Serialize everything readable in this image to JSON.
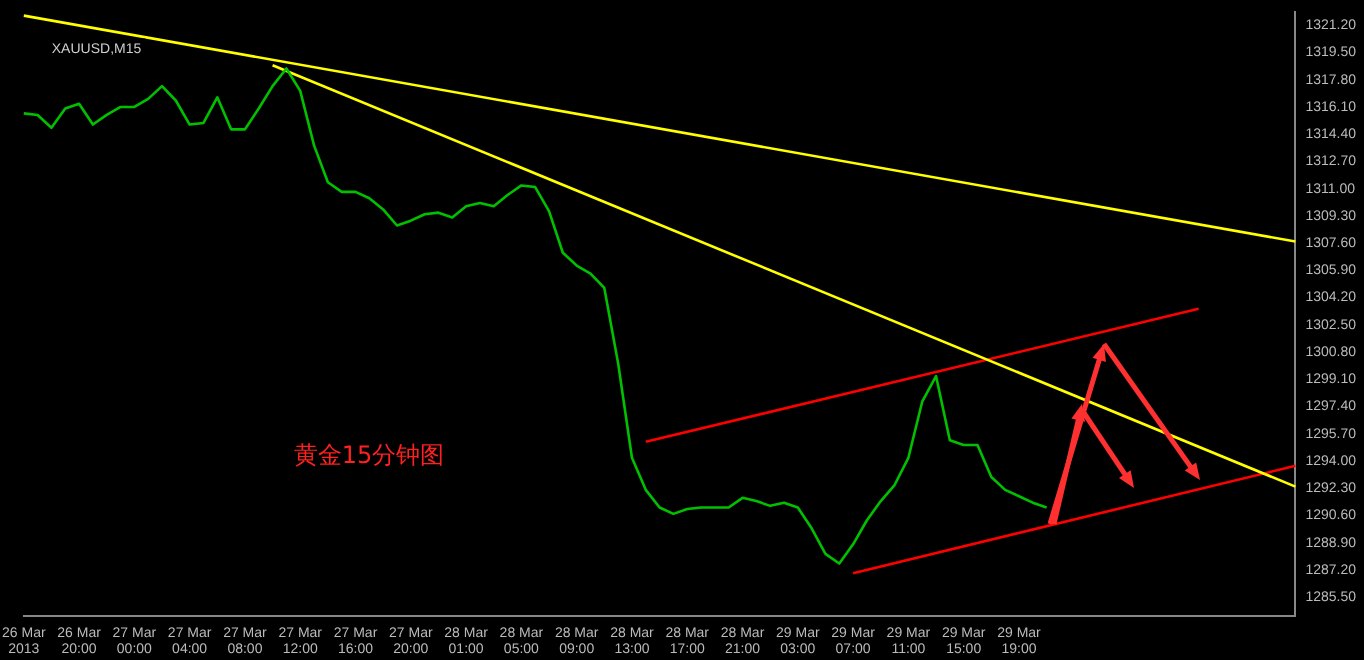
{
  "chart_data": {
    "type": "line",
    "title": "XAUUSD,M15",
    "annotations": [
      "黄金15分钟图"
    ],
    "ylim": [
      1284.3,
      1322.0
    ],
    "categories": [
      "26 Mar 2013",
      null,
      null,
      null,
      "26 Mar 20:00",
      null,
      null,
      null,
      "27 Mar 00:00",
      null,
      null,
      null,
      "27 Mar 04:00",
      null,
      null,
      null,
      "27 Mar 08:00",
      null,
      null,
      null,
      "27 Mar 12:00",
      null,
      null,
      null,
      "27 Mar 16:00",
      null,
      null,
      null,
      "27 Mar 20:00",
      null,
      null,
      null,
      "28 Mar 01:00",
      null,
      null,
      null,
      "28 Mar 05:00",
      null,
      null,
      null,
      "28 Mar 09:00",
      null,
      null,
      null,
      "28 Mar 13:00",
      null,
      null,
      null,
      "28 Mar 17:00",
      null,
      null,
      null,
      "28 Mar 21:00",
      null,
      null,
      null,
      "29 Mar 03:00",
      null,
      null,
      null,
      "29 Mar 07:00",
      null,
      null,
      null,
      "29 Mar 11:00",
      null,
      null,
      null,
      "29 Mar 15:00",
      null,
      null,
      null,
      "29 Mar 19:00",
      null,
      null,
      null,
      null,
      null,
      null,
      null,
      null,
      null,
      null,
      null,
      null,
      null,
      null,
      null,
      null,
      null,
      null,
      null,
      null
    ],
    "yticks": [
      {
        "value": 1321.2,
        "label": "1321.20"
      },
      {
        "value": 1319.5,
        "label": "1319.50"
      },
      {
        "value": 1317.8,
        "label": "1317.80"
      },
      {
        "value": 1316.1,
        "label": "1316.10"
      },
      {
        "value": 1314.4,
        "label": "1314.40"
      },
      {
        "value": 1312.7,
        "label": "1312.70"
      },
      {
        "value": 1311.0,
        "label": "1311.00"
      },
      {
        "value": 1309.3,
        "label": "1309.30"
      },
      {
        "value": 1307.6,
        "label": "1307.60"
      },
      {
        "value": 1305.9,
        "label": "1305.90"
      },
      {
        "value": 1304.2,
        "label": "1304.20"
      },
      {
        "value": 1302.5,
        "label": "1302.50"
      },
      {
        "value": 1300.8,
        "label": "1300.80"
      },
      {
        "value": 1299.1,
        "label": "1299.10"
      },
      {
        "value": 1297.4,
        "label": "1297.40"
      },
      {
        "value": 1295.7,
        "label": "1295.70"
      },
      {
        "value": 1294.0,
        "label": "1294.00"
      },
      {
        "value": 1292.3,
        "label": "1292.30"
      },
      {
        "value": 1290.6,
        "label": "1290.60"
      },
      {
        "value": 1288.9,
        "label": "1288.90"
      },
      {
        "value": 1287.2,
        "label": "1287.20"
      },
      {
        "value": 1285.5,
        "label": "1285.50"
      }
    ],
    "grid": false,
    "legend": false,
    "marker": "none",
    "line_style": "solid",
    "series": [
      {
        "color": "#00c000",
        "values": [
          1315.7,
          1315.6,
          1314.8,
          1316.0,
          1316.3,
          1315.0,
          1315.6,
          1316.1,
          1316.1,
          1316.6,
          1317.4,
          1316.5,
          1315.0,
          1315.1,
          1316.7,
          1314.7,
          1314.7,
          1316.0,
          1317.4,
          1318.5,
          1317.1,
          1313.7,
          1311.4,
          1310.8,
          1310.8,
          1310.4,
          1309.7,
          1308.7,
          1309.0,
          1309.4,
          1309.5,
          1309.2,
          1309.9,
          1310.1,
          1309.9,
          1310.6,
          1311.2,
          1311.1,
          1309.6,
          1307.0,
          1306.2,
          1305.7,
          1304.8,
          1300.1,
          1294.2,
          1292.2,
          1291.1,
          1290.7,
          1291.0,
          1291.1,
          1291.1,
          1291.1,
          1291.7,
          1291.5,
          1291.2,
          1291.4,
          1291.1,
          1289.8,
          1288.2,
          1287.6,
          1288.8,
          1290.3,
          1291.5,
          1292.5,
          1294.2,
          1297.7,
          1299.3,
          1295.3,
          1295.0,
          1295.0,
          1293.0,
          1292.2,
          1291.8,
          1291.4,
          1291.1,
          null,
          null,
          null,
          null,
          null,
          null,
          null,
          null,
          null,
          null,
          null,
          null,
          null,
          null,
          null,
          null,
          null,
          null
        ]
      },
      {
        "color": "#ffff00",
        "values": [
          1321.8,
          null,
          null,
          null,
          null,
          null,
          null,
          null,
          null,
          null,
          null,
          null,
          null,
          null,
          null,
          null,
          null,
          null,
          null,
          null,
          null,
          null,
          null,
          null,
          null,
          null,
          null,
          null,
          null,
          null,
          null,
          null,
          null,
          null,
          null,
          null,
          null,
          null,
          null,
          null,
          null,
          null,
          null,
          null,
          null,
          null,
          null,
          null,
          null,
          null,
          null,
          null,
          null,
          null,
          null,
          null,
          null,
          null,
          null,
          null,
          null,
          null,
          null,
          null,
          null,
          null,
          null,
          null,
          null,
          null,
          null,
          null,
          null,
          null,
          null,
          null,
          null,
          null,
          null,
          null,
          null,
          null,
          null,
          null,
          null,
          null,
          null,
          null,
          null,
          null,
          null,
          null,
          1307.7
        ]
      },
      {
        "color": "#ffff00",
        "values": [
          null,
          null,
          null,
          null,
          null,
          null,
          null,
          null,
          null,
          null,
          null,
          null,
          null,
          null,
          null,
          null,
          null,
          null,
          1318.7,
          null,
          null,
          null,
          null,
          null,
          null,
          null,
          null,
          null,
          null,
          null,
          null,
          null,
          null,
          null,
          null,
          null,
          null,
          null,
          null,
          null,
          null,
          null,
          null,
          null,
          null,
          null,
          null,
          null,
          null,
          null,
          null,
          null,
          null,
          null,
          null,
          null,
          null,
          null,
          null,
          null,
          null,
          null,
          null,
          null,
          null,
          null,
          null,
          null,
          null,
          null,
          null,
          null,
          null,
          null,
          null,
          null,
          null,
          null,
          null,
          null,
          null,
          null,
          null,
          null,
          null,
          null,
          null,
          null,
          null,
          null,
          null,
          null,
          1292.4
        ]
      },
      {
        "color": "#ff0000",
        "values": [
          null,
          null,
          null,
          null,
          null,
          null,
          null,
          null,
          null,
          null,
          null,
          null,
          null,
          null,
          null,
          null,
          null,
          null,
          null,
          null,
          null,
          null,
          null,
          null,
          null,
          null,
          null,
          null,
          null,
          null,
          null,
          null,
          null,
          null,
          null,
          null,
          null,
          null,
          null,
          null,
          null,
          null,
          null,
          null,
          null,
          1295.2,
          null,
          null,
          null,
          null,
          null,
          null,
          null,
          null,
          null,
          null,
          null,
          null,
          null,
          null,
          null,
          null,
          null,
          null,
          null,
          null,
          null,
          null,
          null,
          null,
          null,
          null,
          null,
          null,
          null,
          null,
          null,
          null,
          null,
          null,
          null,
          null,
          null,
          null,
          null,
          1303.5,
          null,
          null,
          null,
          null,
          null,
          null,
          null
        ]
      },
      {
        "color": "#ff0000",
        "values": [
          null,
          null,
          null,
          null,
          null,
          null,
          null,
          null,
          null,
          null,
          null,
          null,
          null,
          null,
          null,
          null,
          null,
          null,
          null,
          null,
          null,
          null,
          null,
          null,
          null,
          null,
          null,
          null,
          null,
          null,
          null,
          null,
          null,
          null,
          null,
          null,
          null,
          null,
          null,
          null,
          null,
          null,
          null,
          null,
          null,
          null,
          null,
          null,
          null,
          null,
          null,
          null,
          null,
          null,
          null,
          null,
          null,
          null,
          null,
          null,
          1287.0,
          null,
          null,
          null,
          null,
          null,
          null,
          null,
          null,
          null,
          null,
          null,
          null,
          null,
          null,
          null,
          null,
          null,
          null,
          null,
          null,
          null,
          null,
          null,
          null,
          null,
          null,
          null,
          null,
          null,
          null,
          null,
          1293.7
        ]
      }
    ]
  }
}
